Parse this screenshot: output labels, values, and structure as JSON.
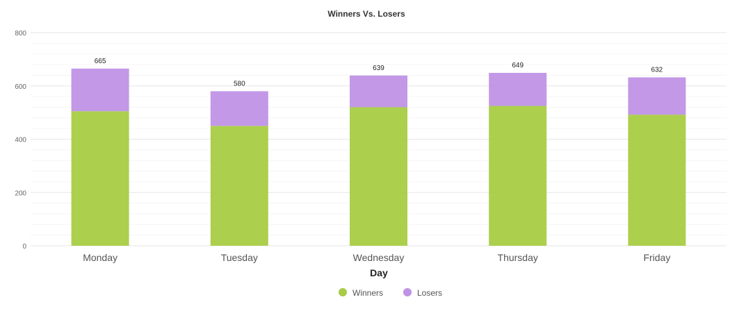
{
  "chart_data": {
    "type": "bar",
    "stacked": true,
    "title": "Winners Vs. Losers",
    "xlabel": "Day",
    "ylabel": "",
    "ylim": [
      0,
      800
    ],
    "yticks": [
      0,
      200,
      400,
      600,
      800
    ],
    "categories": [
      "Monday",
      "Tuesday",
      "Wednesday",
      "Thursday",
      "Friday"
    ],
    "series": [
      {
        "name": "Winners",
        "color": "#a8cc45",
        "values": [
          505,
          450,
          520,
          525,
          492
        ]
      },
      {
        "name": "Losers",
        "color": "#bf92e6",
        "values": [
          160,
          130,
          119,
          124,
          140
        ]
      }
    ],
    "totals": [
      665,
      580,
      639,
      649,
      632
    ],
    "grid": true,
    "legend_position": "bottom-center"
  }
}
